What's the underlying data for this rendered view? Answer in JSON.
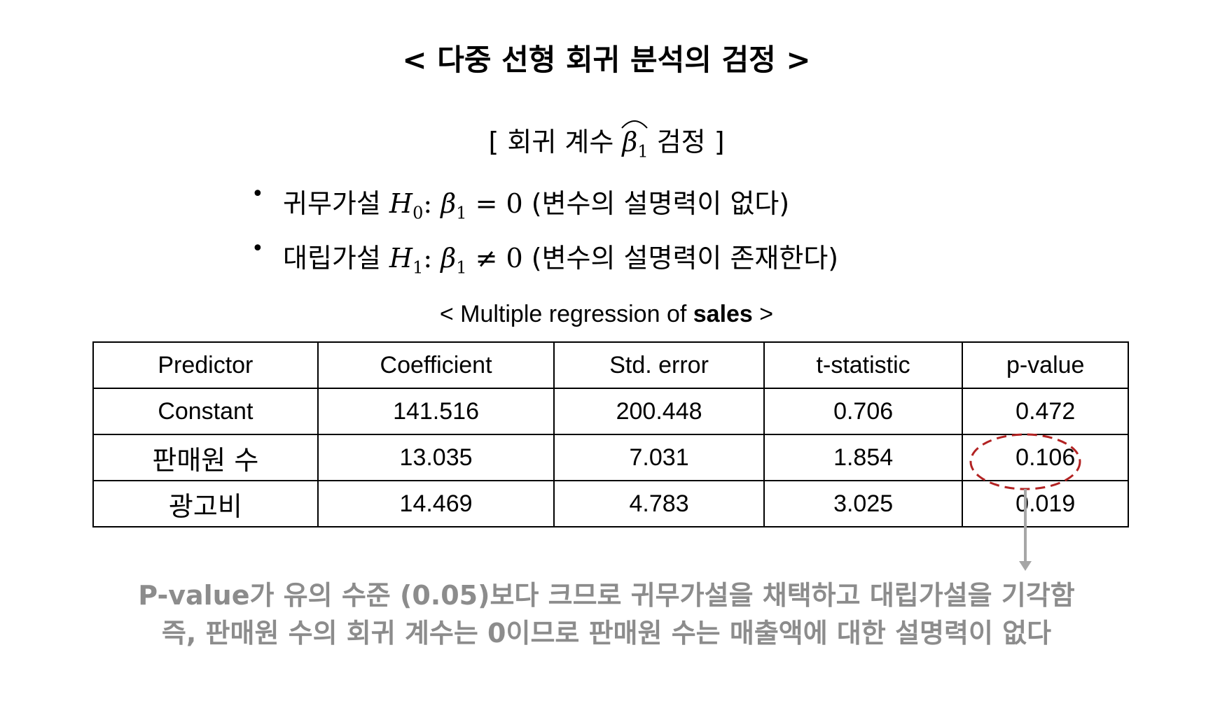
{
  "title": "< 다중 선형 회귀 분석의 검정 >",
  "subtitle": {
    "prefix": "[ 회귀 계수 ",
    "symbol": "β",
    "subscript": "1",
    "suffix": " 검정 ]"
  },
  "hypotheses": [
    {
      "bullet": "•",
      "label": "귀무가설 ",
      "var": "H",
      "var_sub": "0",
      "colon": ": ",
      "beta": "β",
      "beta_sub": "1",
      "relation": " = 0",
      "desc": " (변수의 설명력이 없다)"
    },
    {
      "bullet": "•",
      "label": "대립가설 ",
      "var": "H",
      "var_sub": "1",
      "colon": ": ",
      "beta": "β",
      "beta_sub": "1",
      "relation": " ≠ 0",
      "desc": " (변수의 설명력이 존재한다)"
    }
  ],
  "table_caption": {
    "prefix": "< Multiple regression of ",
    "bold": "sales",
    "suffix": " >"
  },
  "table": {
    "headers": [
      "Predictor",
      "Coefficient",
      "Std. error",
      "t-statistic",
      "p-value"
    ],
    "rows": [
      [
        "Constant",
        "141.516",
        "200.448",
        "0.706",
        "0.472"
      ],
      [
        "판매원 수",
        "13.035",
        "7.031",
        "1.854",
        "0.106"
      ],
      [
        "광고비",
        "14.469",
        "4.783",
        "3.025",
        "0.019"
      ]
    ]
  },
  "conclusion": [
    "P-value가 유의 수준 (0.05)보다 크므로 귀무가설을 채택하고 대립가설을 기각함",
    "즉, 판매원 수의 회귀 계수는 0이므로 판매원 수는 매출액에 대한 설명력이 없다"
  ],
  "colors": {
    "highlight_ellipse": "#b22222",
    "arrow": "#a6a6a6",
    "conclusion_text": "#8c8c8c"
  }
}
